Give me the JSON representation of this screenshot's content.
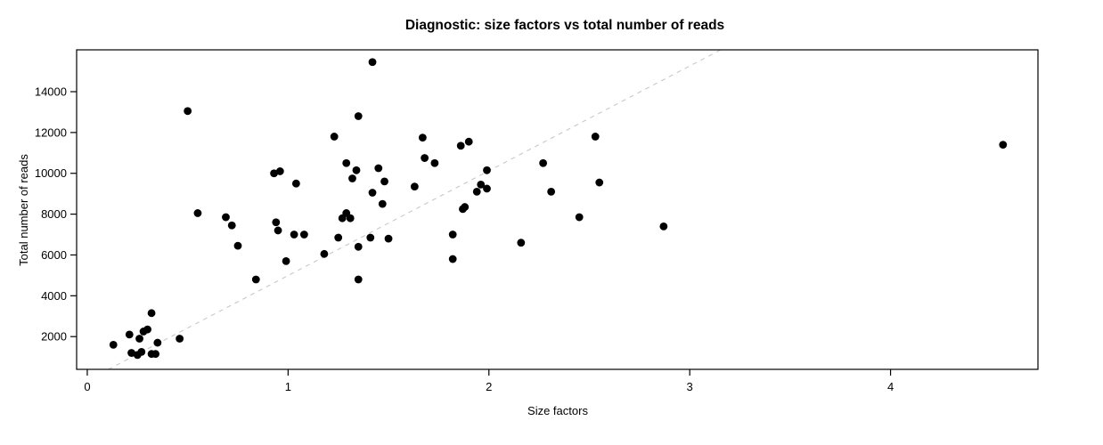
{
  "figure": {
    "background": "#ffffff"
  },
  "chart_data": {
    "type": "scatter",
    "title": "Diagnostic: size factors vs total number of reads",
    "xlabel": "Size factors",
    "ylabel": "Total number of reads",
    "xlim": [
      -0.053,
      4.734
    ],
    "ylim": [
      395,
      16050
    ],
    "xticks": [
      0,
      1,
      2,
      3,
      4
    ],
    "yticks": [
      2000,
      4000,
      6000,
      8000,
      10000,
      12000,
      14000
    ],
    "grid": false,
    "legend": "none",
    "point_color": "#000000",
    "point_radius_px": 4.4,
    "box_color": "#000000",
    "refline": {
      "style": "dashed",
      "color": "#c8c8c8",
      "x1": 0.105,
      "y1": 395,
      "x2": 3.154,
      "y2": 16050
    },
    "points": [
      [
        0.5,
        13050
      ],
      [
        0.93,
        10000
      ],
      [
        0.96,
        10100
      ],
      [
        1.04,
        9500
      ],
      [
        1.42,
        15450
      ],
      [
        1.35,
        12800
      ],
      [
        1.23,
        11800
      ],
      [
        1.67,
        11750
      ],
      [
        1.86,
        11350
      ],
      [
        1.9,
        11550
      ],
      [
        1.29,
        10500
      ],
      [
        1.34,
        10150
      ],
      [
        1.32,
        9750
      ],
      [
        1.45,
        10250
      ],
      [
        1.48,
        9600
      ],
      [
        1.42,
        9050
      ],
      [
        1.47,
        8500
      ],
      [
        1.68,
        10750
      ],
      [
        1.73,
        10500
      ],
      [
        1.63,
        9350
      ],
      [
        1.99,
        10150
      ],
      [
        1.96,
        9450
      ],
      [
        1.99,
        9250
      ],
      [
        1.94,
        9100
      ],
      [
        2.27,
        10500
      ],
      [
        2.31,
        9100
      ],
      [
        2.53,
        11800
      ],
      [
        2.55,
        9550
      ],
      [
        4.56,
        11400
      ],
      [
        0.55,
        8050
      ],
      [
        0.69,
        7850
      ],
      [
        0.72,
        7450
      ],
      [
        0.75,
        6450
      ],
      [
        0.94,
        7600
      ],
      [
        0.95,
        7200
      ],
      [
        1.03,
        7000
      ],
      [
        1.08,
        7000
      ],
      [
        0.99,
        5700
      ],
      [
        0.84,
        4800
      ],
      [
        0.32,
        3150
      ],
      [
        0.21,
        2100
      ],
      [
        0.26,
        1900
      ],
      [
        0.28,
        2250
      ],
      [
        0.3,
        2350
      ],
      [
        0.13,
        1600
      ],
      [
        0.35,
        1700
      ],
      [
        0.22,
        1200
      ],
      [
        0.25,
        1100
      ],
      [
        0.27,
        1250
      ],
      [
        0.32,
        1150
      ],
      [
        0.34,
        1150
      ],
      [
        0.46,
        1900
      ],
      [
        1.29,
        8050
      ],
      [
        1.27,
        7800
      ],
      [
        1.31,
        7800
      ],
      [
        1.25,
        6850
      ],
      [
        1.18,
        6050
      ],
      [
        1.41,
        6850
      ],
      [
        1.35,
        6400
      ],
      [
        1.5,
        6800
      ],
      [
        1.35,
        4800
      ],
      [
        1.88,
        8350
      ],
      [
        1.87,
        8250
      ],
      [
        1.82,
        7000
      ],
      [
        1.82,
        5800
      ],
      [
        2.16,
        6600
      ],
      [
        2.45,
        7850
      ],
      [
        2.87,
        7400
      ]
    ]
  }
}
